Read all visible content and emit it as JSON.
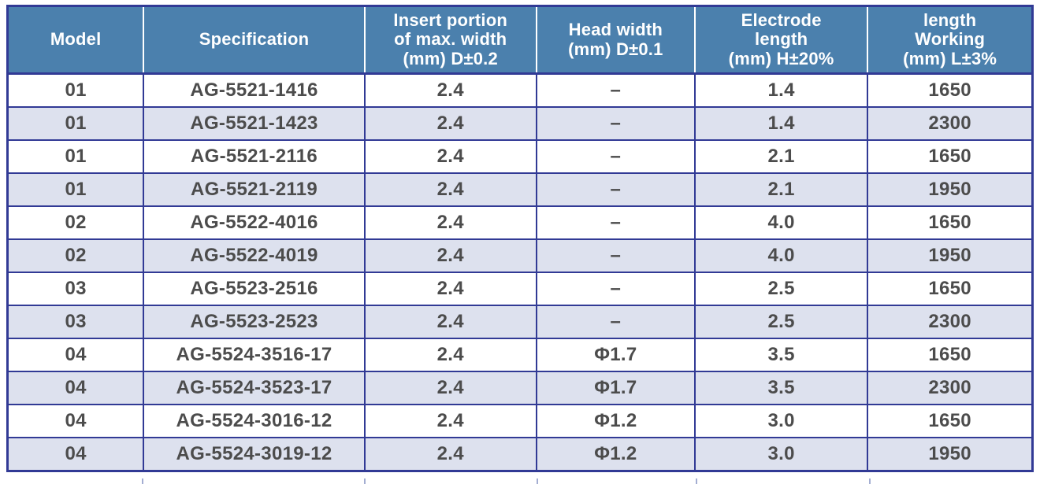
{
  "colors": {
    "header_bg": "#4b80ad",
    "header_text": "#ffffff",
    "border_navy": "#313a95",
    "row_stripe": "#dde1ee",
    "row_white": "#ffffff",
    "cell_text": "#4c4c4c"
  },
  "table": {
    "columns": [
      {
        "id": "model",
        "label": "Model"
      },
      {
        "id": "specification",
        "label": "Specification"
      },
      {
        "id": "insert_width",
        "label": "Insert portion\nof max. width\n(mm) D±0.2"
      },
      {
        "id": "head_width",
        "label": "Head width\n(mm) D±0.1"
      },
      {
        "id": "electrode_length",
        "label": "Electrode\nlength\n(mm) H±20%"
      },
      {
        "id": "working_length",
        "label": "length\nWorking\n(mm) L±3%"
      }
    ],
    "rows": [
      [
        "01",
        "AG-5521-1416",
        "2.4",
        "–",
        "1.4",
        "1650"
      ],
      [
        "01",
        "AG-5521-1423",
        "2.4",
        "–",
        "1.4",
        "2300"
      ],
      [
        "01",
        "AG-5521-2116",
        "2.4",
        "–",
        "2.1",
        "1650"
      ],
      [
        "01",
        "AG-5521-2119",
        "2.4",
        "–",
        "2.1",
        "1950"
      ],
      [
        "02",
        "AG-5522-4016",
        "2.4",
        "–",
        "4.0",
        "1650"
      ],
      [
        "02",
        "AG-5522-4019",
        "2.4",
        "–",
        "4.0",
        "1950"
      ],
      [
        "03",
        "AG-5523-2516",
        "2.4",
        "–",
        "2.5",
        "1650"
      ],
      [
        "03",
        "AG-5523-2523",
        "2.4",
        "–",
        "2.5",
        "2300"
      ],
      [
        "04",
        "AG-5524-3516-17",
        "2.4",
        "Φ1.7",
        "3.5",
        "1650"
      ],
      [
        "04",
        "AG-5524-3523-17",
        "2.4",
        "Φ1.7",
        "3.5",
        "2300"
      ],
      [
        "04",
        "AG-5524-3016-12",
        "2.4",
        "Φ1.2",
        "3.0",
        "1650"
      ],
      [
        "04",
        "AG-5524-3019-12",
        "2.4",
        "Φ1.2",
        "3.0",
        "1950"
      ]
    ]
  }
}
